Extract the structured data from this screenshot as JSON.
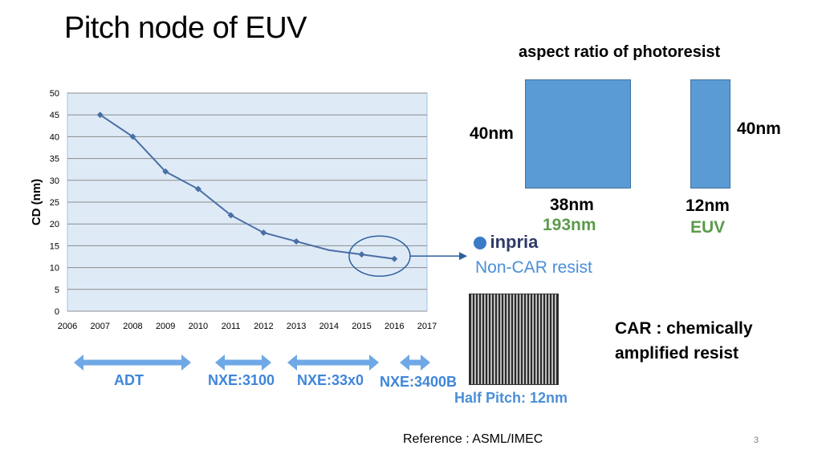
{
  "slide": {
    "title": "Pitch node of EUV",
    "aspect_title": "aspect ratio of photoresist",
    "left_height": "40nm",
    "right_height": "40nm",
    "left_width": "38nm",
    "left_source": "193nm",
    "right_width": "12nm",
    "right_source": "EUV",
    "inpria_logo": "inpria",
    "inpria_sub": "Non-CAR resist",
    "half_pitch": "Half Pitch: 12nm",
    "car_line1": "CAR : chemically",
    "car_line2": "amplified resist",
    "reference": "Reference : ASML/IMEC",
    "page_number": "3",
    "tools": [
      "ADT",
      "NXE:3100",
      "NXE:33x0",
      "NXE:3400B"
    ]
  },
  "colors": {
    "accent_blue": "#4a8fd8",
    "green": "#5b9b4a",
    "resist_blue": "#5b9bd5",
    "plot_bg": "#deebf7",
    "series": "#4a6fa5"
  },
  "chart_data": {
    "type": "line",
    "title": "",
    "xlabel": "",
    "ylabel": "CD (nm)",
    "xlim": [
      2006,
      2017
    ],
    "ylim": [
      0,
      50
    ],
    "x_ticks": [
      "2006",
      "2007",
      "2008",
      "2009",
      "2010",
      "2011",
      "2012",
      "2013",
      "2014",
      "2015",
      "2016",
      "2017"
    ],
    "y_ticks": [
      "0",
      "5",
      "10",
      "15",
      "20",
      "25",
      "30",
      "35",
      "40",
      "45",
      "50"
    ],
    "grid": true,
    "series": [
      {
        "x": [
          2007,
          2008,
          2009,
          2010,
          2011,
          2012,
          2013,
          2014,
          2015,
          2016
        ],
        "y": [
          45,
          40,
          32,
          28,
          22,
          18,
          16,
          14,
          13,
          12
        ],
        "markers": [
          true,
          true,
          true,
          true,
          true,
          true,
          true,
          false,
          true,
          true
        ]
      }
    ],
    "annotation": {
      "type": "ellipse",
      "around_x": [
        2015,
        2016
      ],
      "target": "inpria"
    }
  }
}
